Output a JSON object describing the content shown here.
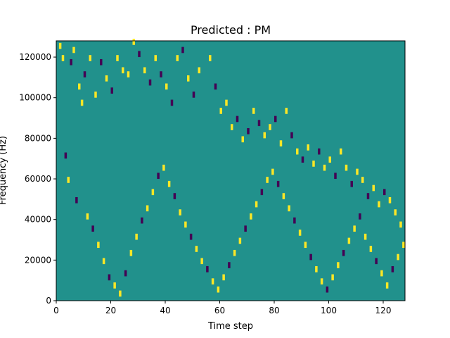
{
  "chart_data": {
    "type": "heatmap",
    "title": "Predicted : PM",
    "xlabel": "Time step",
    "ylabel": "Frequency (Hz)",
    "xlim": [
      0,
      128
    ],
    "ylim": [
      0,
      128000
    ],
    "xticks": [
      0,
      20,
      40,
      60,
      80,
      100,
      120
    ],
    "xtick_labels": [
      "0",
      "20",
      "40",
      "60",
      "80",
      "100",
      "120"
    ],
    "yticks": [
      0,
      20000,
      40000,
      60000,
      80000,
      100000,
      120000
    ],
    "ytick_labels": [
      "0",
      "20000",
      "40000",
      "60000",
      "80000",
      "100000",
      "120000"
    ],
    "colormap": "viridis",
    "colors": {
      "background": "#21918c",
      "low": "#440154",
      "high": "#fde725"
    },
    "cells_note": "Sparse binary-like spectrogram mask; values -1 (purple), 0 (teal), +1 (yellow)",
    "cells": [
      [
        1,
        124000,
        1
      ],
      [
        2,
        118000,
        1
      ],
      [
        5,
        116000,
        -1
      ],
      [
        6,
        122000,
        1
      ],
      [
        8,
        104000,
        1
      ],
      [
        9,
        96000,
        1
      ],
      [
        10,
        110000,
        -1
      ],
      [
        12,
        118000,
        1
      ],
      [
        14,
        100000,
        1
      ],
      [
        16,
        116000,
        -1
      ],
      [
        18,
        108000,
        1
      ],
      [
        20,
        102000,
        -1
      ],
      [
        22,
        118000,
        1
      ],
      [
        24,
        112000,
        1
      ],
      [
        26,
        110000,
        1
      ],
      [
        28,
        126000,
        1
      ],
      [
        30,
        120000,
        -1
      ],
      [
        32,
        112000,
        1
      ],
      [
        34,
        106000,
        -1
      ],
      [
        36,
        118000,
        1
      ],
      [
        38,
        110000,
        -1
      ],
      [
        40,
        104000,
        1
      ],
      [
        42,
        96000,
        -1
      ],
      [
        44,
        118000,
        1
      ],
      [
        46,
        122000,
        -1
      ],
      [
        48,
        108000,
        1
      ],
      [
        50,
        100000,
        -1
      ],
      [
        52,
        112000,
        1
      ],
      [
        56,
        118000,
        1
      ],
      [
        58,
        104000,
        -1
      ],
      [
        60,
        92000,
        1
      ],
      [
        62,
        96000,
        1
      ],
      [
        64,
        84000,
        1
      ],
      [
        66,
        88000,
        -1
      ],
      [
        68,
        78000,
        1
      ],
      [
        70,
        82000,
        -1
      ],
      [
        72,
        92000,
        1
      ],
      [
        74,
        86000,
        -1
      ],
      [
        76,
        80000,
        1
      ],
      [
        78,
        84000,
        1
      ],
      [
        80,
        88000,
        -1
      ],
      [
        82,
        76000,
        1
      ],
      [
        84,
        92000,
        1
      ],
      [
        86,
        80000,
        -1
      ],
      [
        88,
        72000,
        1
      ],
      [
        90,
        68000,
        -1
      ],
      [
        92,
        74000,
        1
      ],
      [
        94,
        66000,
        1
      ],
      [
        96,
        72000,
        -1
      ],
      [
        98,
        64000,
        1
      ],
      [
        100,
        68000,
        1
      ],
      [
        102,
        60000,
        -1
      ],
      [
        104,
        72000,
        1
      ],
      [
        106,
        64000,
        1
      ],
      [
        108,
        56000,
        -1
      ],
      [
        110,
        62000,
        1
      ],
      [
        112,
        58000,
        1
      ],
      [
        114,
        50000,
        -1
      ],
      [
        116,
        54000,
        1
      ],
      [
        118,
        46000,
        1
      ],
      [
        120,
        52000,
        -1
      ],
      [
        122,
        48000,
        1
      ],
      [
        124,
        42000,
        1
      ],
      [
        126,
        36000,
        1
      ],
      [
        3,
        70000,
        -1
      ],
      [
        4,
        58000,
        1
      ],
      [
        7,
        48000,
        -1
      ],
      [
        11,
        40000,
        1
      ],
      [
        13,
        34000,
        -1
      ],
      [
        15,
        26000,
        1
      ],
      [
        17,
        18000,
        1
      ],
      [
        19,
        10000,
        -1
      ],
      [
        21,
        6000,
        1
      ],
      [
        23,
        2000,
        1
      ],
      [
        25,
        12000,
        -1
      ],
      [
        27,
        22000,
        1
      ],
      [
        29,
        30000,
        1
      ],
      [
        31,
        38000,
        -1
      ],
      [
        33,
        44000,
        1
      ],
      [
        35,
        52000,
        1
      ],
      [
        37,
        60000,
        -1
      ],
      [
        39,
        64000,
        1
      ],
      [
        41,
        56000,
        1
      ],
      [
        43,
        50000,
        -1
      ],
      [
        45,
        42000,
        1
      ],
      [
        47,
        36000,
        1
      ],
      [
        49,
        30000,
        -1
      ],
      [
        51,
        24000,
        1
      ],
      [
        53,
        18000,
        1
      ],
      [
        55,
        14000,
        -1
      ],
      [
        57,
        8000,
        1
      ],
      [
        59,
        4000,
        1
      ],
      [
        61,
        10000,
        1
      ],
      [
        63,
        16000,
        -1
      ],
      [
        65,
        22000,
        1
      ],
      [
        67,
        28000,
        1
      ],
      [
        69,
        34000,
        -1
      ],
      [
        71,
        40000,
        1
      ],
      [
        73,
        46000,
        1
      ],
      [
        75,
        52000,
        -1
      ],
      [
        77,
        58000,
        1
      ],
      [
        79,
        62000,
        1
      ],
      [
        81,
        56000,
        -1
      ],
      [
        83,
        50000,
        1
      ],
      [
        85,
        44000,
        1
      ],
      [
        87,
        38000,
        -1
      ],
      [
        89,
        32000,
        1
      ],
      [
        91,
        26000,
        1
      ],
      [
        93,
        20000,
        -1
      ],
      [
        95,
        14000,
        1
      ],
      [
        97,
        8000,
        1
      ],
      [
        99,
        4000,
        -1
      ],
      [
        101,
        10000,
        1
      ],
      [
        103,
        16000,
        1
      ],
      [
        105,
        22000,
        -1
      ],
      [
        107,
        28000,
        1
      ],
      [
        109,
        34000,
        1
      ],
      [
        111,
        40000,
        -1
      ],
      [
        113,
        30000,
        1
      ],
      [
        115,
        24000,
        1
      ],
      [
        117,
        18000,
        -1
      ],
      [
        119,
        12000,
        1
      ],
      [
        121,
        6000,
        1
      ],
      [
        123,
        14000,
        -1
      ],
      [
        125,
        20000,
        1
      ],
      [
        127,
        26000,
        1
      ]
    ]
  }
}
